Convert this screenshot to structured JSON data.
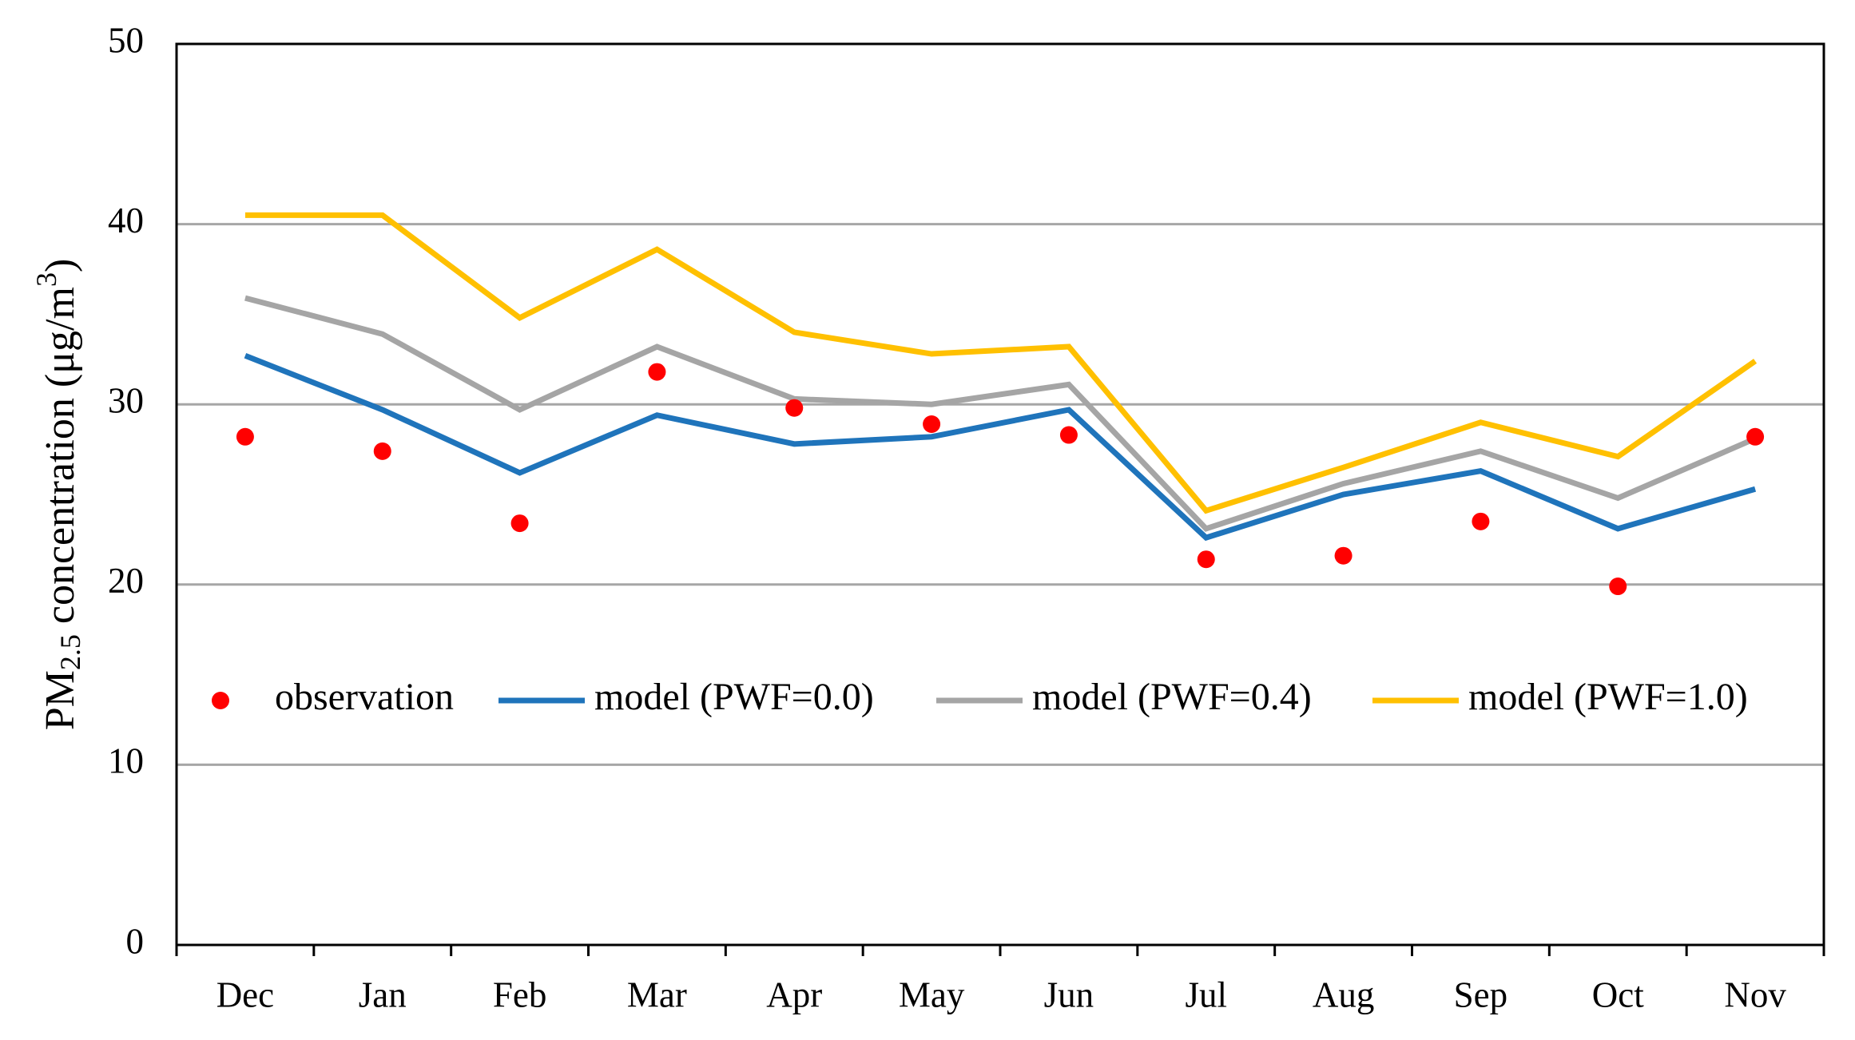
{
  "chart_data": {
    "type": "line",
    "y_label": [
      "PM",
      "2.5",
      " concentration (μg/m",
      "3",
      ")"
    ],
    "categories": [
      "Dec",
      "Jan",
      "Feb",
      "Mar",
      "Apr",
      "May",
      "Jun",
      "Jul",
      "Aug",
      "Sep",
      "Oct",
      "Nov"
    ],
    "series": [
      {
        "name": "observation",
        "mode": "markers",
        "color": "#ff0000",
        "values": [
          28.2,
          27.4,
          23.4,
          31.8,
          29.8,
          28.9,
          28.3,
          21.4,
          21.6,
          23.5,
          19.9,
          28.2
        ]
      },
      {
        "name": "model (PWF=0.0)",
        "mode": "lines",
        "color": "#1f74bb",
        "values": [
          32.7,
          29.7,
          26.2,
          29.4,
          27.8,
          28.2,
          29.7,
          22.6,
          25.0,
          26.3,
          23.1,
          25.3
        ]
      },
      {
        "name": "model (PWF=0.4)",
        "mode": "lines",
        "color": "#a5a5a5",
        "values": [
          35.9,
          33.9,
          29.7,
          33.2,
          30.3,
          30.0,
          31.1,
          23.1,
          25.6,
          27.4,
          24.8,
          28.1
        ]
      },
      {
        "name": "model (PWF=1.0)",
        "mode": "lines",
        "color": "#ffc000",
        "values": [
          40.5,
          40.5,
          34.8,
          38.6,
          34.0,
          32.8,
          33.2,
          24.1,
          26.5,
          29.0,
          27.1,
          32.4
        ]
      }
    ],
    "ylim": [
      0,
      50
    ],
    "yticks": [
      0,
      10,
      20,
      30,
      40,
      50
    ],
    "grid": true
  }
}
